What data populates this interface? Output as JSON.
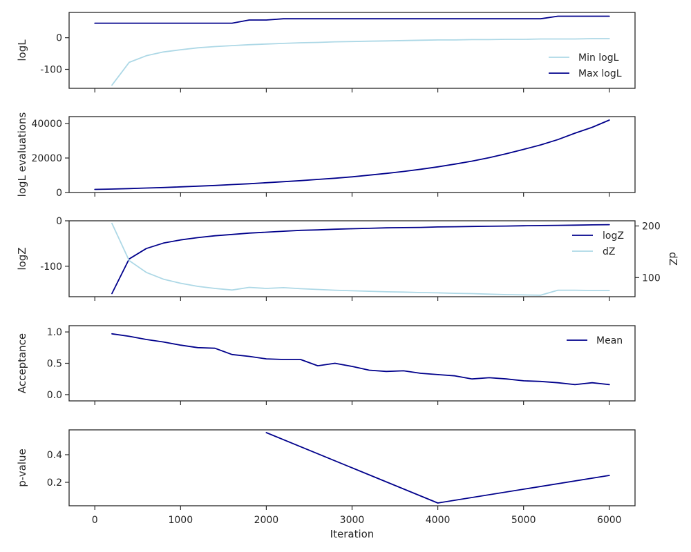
{
  "colors": {
    "light_series": "#add8e6",
    "dark_series": "#00008b",
    "frame": "#262626"
  },
  "chart_data": [
    {
      "type": "line",
      "ylabel": "logL",
      "ylim": [
        -160,
        80
      ],
      "yticks": [
        0,
        -100
      ],
      "legend_position": "center-right",
      "series": [
        {
          "name": "Min logL",
          "color_key": "light_series",
          "x": [
            200,
            400,
            600,
            800,
            1000,
            1200,
            1400,
            1600,
            1800,
            2000,
            2200,
            2400,
            2600,
            2800,
            3000,
            3200,
            3400,
            3600,
            3800,
            4000,
            4200,
            4400,
            4600,
            4800,
            5000,
            5200,
            5400,
            5600,
            5800,
            6000
          ],
          "y": [
            -150,
            -78,
            -57,
            -45,
            -38,
            -32,
            -28,
            -25,
            -22,
            -20,
            -18,
            -16,
            -15,
            -13,
            -12,
            -11,
            -10,
            -9,
            -8,
            -7,
            -7,
            -6,
            -6,
            -5,
            -5,
            -4,
            -4,
            -4,
            -3,
            -3
          ]
        },
        {
          "name": "Max logL",
          "color_key": "dark_series",
          "x": [
            0,
            1600,
            1800,
            2000,
            2200,
            5200,
            5400,
            6000
          ],
          "y": [
            46,
            46,
            56,
            56,
            60,
            60,
            68,
            68
          ]
        }
      ]
    },
    {
      "type": "line",
      "ylabel": "logL evaluations",
      "ylim": [
        0,
        44000
      ],
      "yticks": [
        0,
        20000,
        40000
      ],
      "series": [
        {
          "color_key": "dark_series",
          "x": [
            0,
            200,
            400,
            600,
            800,
            1000,
            1200,
            1400,
            1600,
            1800,
            2000,
            2200,
            2400,
            2600,
            2800,
            3000,
            3200,
            3400,
            3600,
            3800,
            4000,
            4200,
            4400,
            4600,
            4800,
            5000,
            5200,
            5400,
            5600,
            5800,
            6000
          ],
          "y": [
            1800,
            2000,
            2300,
            2600,
            2900,
            3300,
            3700,
            4100,
            4600,
            5100,
            5700,
            6300,
            6900,
            7600,
            8300,
            9100,
            10100,
            11100,
            12200,
            13500,
            14900,
            16500,
            18200,
            20200,
            22500,
            25000,
            27600,
            30700,
            34400,
            37800,
            42000
          ]
        }
      ]
    },
    {
      "type": "line",
      "ylabel": "logZ",
      "ylabel_right": "dZ",
      "ylim": [
        -167,
        0
      ],
      "yticks": [
        0,
        -100
      ],
      "ylim_right": [
        63,
        210
      ],
      "yticks_right": [
        200,
        100
      ],
      "legend_position": "upper-right",
      "series": [
        {
          "name": "logZ",
          "axis": "left",
          "color_key": "dark_series",
          "x": [
            200,
            400,
            600,
            800,
            1000,
            1200,
            1400,
            1600,
            1800,
            2000,
            2200,
            2400,
            2600,
            2800,
            3000,
            3200,
            3400,
            3600,
            3800,
            4000,
            4200,
            4400,
            4600,
            4800,
            5000,
            5200,
            5400,
            5600,
            5800,
            6000
          ],
          "y": [
            -160,
            -84,
            -61,
            -49,
            -42,
            -37,
            -33,
            -30,
            -27,
            -25,
            -23,
            -21,
            -20,
            -18.5,
            -17.5,
            -16.5,
            -15.5,
            -15,
            -14.5,
            -13.5,
            -13,
            -12.5,
            -12,
            -11.5,
            -11,
            -10.5,
            -10,
            -9.5,
            -9,
            -8.5
          ]
        },
        {
          "name": "dZ",
          "axis": "right",
          "color_key": "light_series",
          "x": [
            200,
            400,
            600,
            800,
            1000,
            1200,
            1400,
            1600,
            1800,
            2000,
            2200,
            2400,
            2600,
            2800,
            3000,
            3200,
            3400,
            3600,
            3800,
            4000,
            4200,
            4400,
            4600,
            4800,
            5000,
            5200,
            5400,
            5600,
            5800,
            6000
          ],
          "y": [
            205,
            133,
            110,
            97,
            89,
            83,
            79,
            76,
            81,
            79,
            80.5,
            78.5,
            77,
            75.5,
            74.5,
            73.5,
            72.5,
            72,
            71,
            70.5,
            69.5,
            69,
            68,
            67,
            66.5,
            66,
            75.5,
            75.5,
            75,
            75
          ]
        }
      ]
    },
    {
      "type": "line",
      "ylabel": "Acceptance",
      "ylim": [
        -0.1,
        1.1
      ],
      "yticks": [
        1.0,
        0.5,
        0.0
      ],
      "ytick_labels": [
        "1.0",
        "0.5",
        "0.0"
      ],
      "legend_position": "upper-right",
      "series": [
        {
          "name": "Mean",
          "color_key": "dark_series",
          "x": [
            200,
            400,
            600,
            800,
            1000,
            1200,
            1400,
            1600,
            1800,
            2000,
            2200,
            2400,
            2600,
            2800,
            3000,
            3200,
            3400,
            3600,
            3800,
            4000,
            4200,
            4400,
            4600,
            4800,
            5000,
            5200,
            5400,
            5600,
            5800,
            6000
          ],
          "y": [
            0.97,
            0.93,
            0.88,
            0.84,
            0.79,
            0.75,
            0.74,
            0.64,
            0.61,
            0.57,
            0.56,
            0.56,
            0.46,
            0.5,
            0.45,
            0.39,
            0.37,
            0.38,
            0.34,
            0.32,
            0.3,
            0.25,
            0.27,
            0.25,
            0.22,
            0.21,
            0.19,
            0.16,
            0.19,
            0.16
          ]
        }
      ]
    },
    {
      "type": "line",
      "ylabel": "p-value",
      "xlabel": "Iteration",
      "ylim": [
        0.03,
        0.58
      ],
      "yticks": [
        0.4,
        0.2
      ],
      "ytick_labels": [
        "0.4",
        "0.2"
      ],
      "series": [
        {
          "color_key": "dark_series",
          "x": [
            2000,
            4000,
            6000
          ],
          "y": [
            0.56,
            0.05,
            0.25
          ]
        }
      ]
    }
  ],
  "x_axis": {
    "xlim": [
      -300,
      6300
    ],
    "ticks": [
      0,
      1000,
      2000,
      3000,
      4000,
      5000,
      6000
    ],
    "tick_labels": [
      "0",
      "1000",
      "2000",
      "3000",
      "4000",
      "5000",
      "6000"
    ],
    "xlabel": "Iteration"
  }
}
